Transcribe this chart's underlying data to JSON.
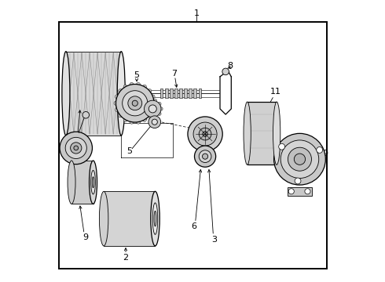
{
  "background_color": "#ffffff",
  "line_color": "#000000",
  "text_color": "#000000",
  "fig_width": 4.9,
  "fig_height": 3.6,
  "dpi": 100
}
